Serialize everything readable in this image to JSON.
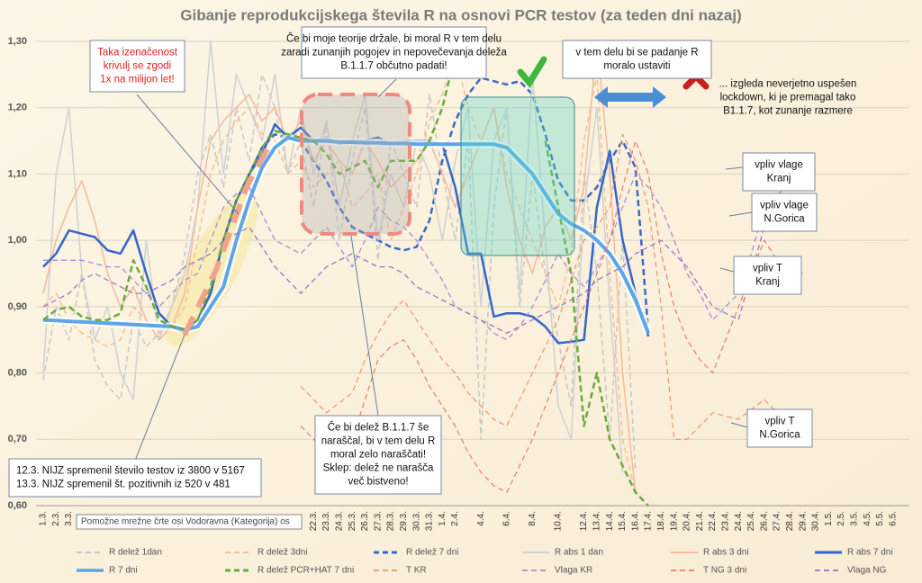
{
  "chart_data": {
    "type": "line",
    "title": "Gibanje reprodukcijskega števila R na osnovi PCR testov (za teden dni nazaj)",
    "categories": [
      "1.3.",
      "2.3.",
      "3.3.",
      null,
      null,
      null,
      null,
      null,
      null,
      null,
      null,
      null,
      null,
      null,
      null,
      null,
      null,
      null,
      null,
      null,
      null,
      "22.3.",
      "23.3.",
      "24.3.",
      "25.3.",
      "26.3.",
      "27.3.",
      "28.3.",
      "29.3.",
      "30.3.",
      "31.3.",
      "1.4.",
      "2.4.",
      null,
      "4.4.",
      null,
      "6.4.",
      null,
      "8.4.",
      null,
      "10.4.",
      null,
      "12.4.",
      "13.4.",
      "14.4.",
      "15.4.",
      "16.4.",
      "17.4.",
      "18.4.",
      "19.4.",
      "20.4.",
      "21.4.",
      "22.4.",
      "23.4.",
      "24.4.",
      "25.4.",
      "26.4.",
      "27.4.",
      "28.4.",
      "29.4.",
      "30.4.",
      "1.5.",
      "2.5.",
      "3.5.",
      "4.5.",
      "5.5.",
      "6.5."
    ],
    "ylim": [
      0.6,
      1.3
    ],
    "yticks": [
      {
        "value": 0.6,
        "label": "0,60"
      },
      {
        "value": 0.7,
        "label": "0,70"
      },
      {
        "value": 0.8,
        "label": "0,80"
      },
      {
        "value": 0.9,
        "label": "0,90"
      },
      {
        "value": 1.0,
        "label": "1,00"
      },
      {
        "value": 1.1,
        "label": "1,10"
      },
      {
        "value": 1.2,
        "label": "1,20"
      },
      {
        "value": 1.3,
        "label": "1,30"
      }
    ],
    "grid": true,
    "legend": "bottom",
    "series": [
      {
        "name": "R delež 1dan",
        "color": "#c6c6c6",
        "dashed": true,
        "values": [
          0.79,
          0.9,
          0.85,
          0.95,
          0.82,
          0.78,
          0.76,
          0.88,
          0.84,
          0.86,
          0.9,
          0.98,
          1.1,
          1.16,
          1.08,
          1.2,
          1.12,
          1.25,
          1.2,
          1.1,
          1.15,
          1.05,
          1.18,
          1.0,
          1.12,
          1.2,
          0.97,
          1.15,
          1.1,
          1.05,
          1.22,
          1.1,
          1.0,
          1.15,
          0.7,
          1.05,
          1.2,
          0.9,
          1.1,
          0.95,
          0.85,
          0.75,
          1.1,
          0.95,
          0.7,
          1.0,
          0.65,
          null,
          null,
          null,
          null,
          null,
          null,
          null,
          null,
          null,
          null,
          null,
          null,
          null,
          null,
          null,
          null,
          null,
          null,
          null,
          null
        ]
      },
      {
        "name": "R delež 3dni",
        "color": "#f5bf94",
        "dashed": true,
        "values": [
          0.9,
          0.92,
          0.88,
          0.86,
          0.85,
          0.84,
          0.85,
          0.9,
          0.88,
          0.86,
          0.87,
          0.9,
          1.0,
          1.1,
          1.15,
          1.18,
          1.2,
          1.16,
          1.15,
          1.1,
          1.12,
          1.08,
          1.1,
          1.12,
          1.05,
          1.07,
          1.1,
          1.0,
          1.05,
          1.1,
          1.18,
          1.22,
          1.28,
          1.2,
          1.15,
          1.2,
          1.1,
          1.05,
          1.0,
          0.95,
          0.9,
          0.98,
          1.15,
          1.25,
          0.95,
          0.7,
          0.62,
          null,
          null,
          null,
          null,
          null,
          null,
          null,
          null,
          null,
          null,
          null,
          null,
          null,
          null,
          null,
          null,
          null,
          null,
          null,
          null
        ]
      },
      {
        "name": "R delež 7 dni",
        "color": "#3a68c8",
        "dashed": true,
        "values": [
          null,
          null,
          null,
          null,
          null,
          null,
          null,
          null,
          null,
          null,
          null,
          0.86,
          0.88,
          0.92,
          1.0,
          1.06,
          1.1,
          1.14,
          1.16,
          1.155,
          1.15,
          1.12,
          1.09,
          1.05,
          1.02,
          1.01,
          1.0,
          0.99,
          0.985,
          0.99,
          1.03,
          1.12,
          1.18,
          1.22,
          1.245,
          1.24,
          1.235,
          1.24,
          1.22,
          1.16,
          1.09,
          1.06,
          1.06,
          1.08,
          1.12,
          1.15,
          1.11,
          0.86,
          null,
          null,
          null,
          null,
          null,
          null,
          null,
          null,
          null,
          null,
          null,
          null,
          null,
          null,
          null,
          null,
          null,
          null,
          null
        ]
      },
      {
        "name": "R abs 1 dan",
        "color": "#d0d0d0",
        "dashed": false,
        "values": [
          0.8,
          1.1,
          1.2,
          0.95,
          0.85,
          0.9,
          0.8,
          0.76,
          1.0,
          0.85,
          0.9,
          0.95,
          1.05,
          1.3,
          1.1,
          1.25,
          1.2,
          1.15,
          1.25,
          1.1,
          1.2,
          1.1,
          1.18,
          1.05,
          1.15,
          1.22,
          1.0,
          1.1,
          1.05,
          1.15,
          1.1,
          1.0,
          1.12,
          1.2,
          0.9,
          1.15,
          1.2,
          0.92,
          1.25,
          1.0,
          0.75,
          0.7,
          1.05,
          1.2,
          0.9,
          0.65,
          null,
          null,
          null,
          null,
          null,
          null,
          null,
          null,
          null,
          null,
          null,
          null,
          null,
          null,
          null,
          null,
          null,
          null,
          null,
          null,
          null
        ]
      },
      {
        "name": "R abs 3 dni",
        "color": "#f6b99c",
        "dashed": false,
        "values": [
          0.92,
          1.0,
          1.05,
          1.09,
          1.03,
          0.95,
          0.9,
          0.93,
          0.88,
          0.85,
          0.87,
          0.92,
          1.05,
          1.15,
          1.18,
          1.2,
          1.22,
          1.18,
          1.2,
          1.15,
          1.18,
          1.12,
          1.15,
          1.12,
          1.1,
          1.15,
          1.12,
          1.08,
          1.1,
          1.12,
          1.15,
          1.1,
          1.05,
          1.1,
          1.15,
          1.2,
          1.08,
          1.0,
          0.95,
          1.02,
          1.05,
          1.0,
          1.08,
          1.3,
          1.1,
          0.8,
          0.62,
          null,
          null,
          null,
          null,
          null,
          null,
          null,
          null,
          null,
          null,
          null,
          null,
          null,
          null,
          null,
          null,
          null,
          null,
          null,
          null
        ]
      },
      {
        "name": "R abs 7 dni",
        "color": "#3366cc",
        "dashed": false,
        "values": [
          0.96,
          0.98,
          1.015,
          1.01,
          1.005,
          0.985,
          0.98,
          1.015,
          0.95,
          0.89,
          0.87,
          0.86,
          0.88,
          0.92,
          1.0,
          1.06,
          1.1,
          1.13,
          1.175,
          1.155,
          1.17,
          1.15,
          1.155,
          1.145,
          1.15,
          1.15,
          1.155,
          1.145,
          1.15,
          1.15,
          1.15,
          1.145,
          1.08,
          0.98,
          0.98,
          0.885,
          0.89,
          0.89,
          0.885,
          0.87,
          0.845,
          0.847,
          0.85,
          1.05,
          1.135,
          1.0,
          0.92,
          0.855,
          null,
          null,
          null,
          null,
          null,
          null,
          null,
          null,
          null,
          null,
          null,
          null,
          null,
          null,
          null,
          null,
          null,
          null,
          null
        ]
      },
      {
        "name": "R 7 dni",
        "color": "#5ba6e8",
        "dashed": false,
        "values": [
          0.88,
          0.879,
          0.878,
          0.877,
          0.876,
          0.875,
          0.874,
          0.873,
          0.872,
          0.871,
          0.87,
          0.865,
          0.87,
          0.9,
          0.93,
          1.0,
          1.06,
          1.11,
          1.14,
          1.155,
          1.15,
          1.15,
          1.15,
          1.148,
          1.148,
          1.147,
          1.147,
          1.146,
          1.146,
          1.145,
          1.145,
          1.145,
          1.145,
          1.145,
          1.145,
          1.145,
          1.14,
          1.12,
          1.1,
          1.07,
          1.04,
          1.025,
          1.015,
          1.0,
          0.98,
          0.95,
          0.91,
          0.86,
          null,
          null,
          null,
          null,
          null,
          null,
          null,
          null,
          null,
          null,
          null,
          null,
          null,
          null,
          null,
          null,
          null,
          null,
          null
        ]
      },
      {
        "name": "R delež PCR+HAT 7 dni",
        "color": "#6aab3a",
        "dashed": true,
        "values": [
          0.88,
          0.895,
          0.9,
          0.885,
          0.88,
          0.88,
          0.89,
          0.97,
          0.93,
          0.88,
          0.87,
          0.865,
          0.88,
          0.93,
          1.0,
          1.06,
          1.1,
          1.14,
          1.165,
          1.16,
          1.155,
          1.15,
          1.13,
          1.1,
          1.11,
          1.12,
          1.08,
          1.12,
          1.12,
          1.12,
          1.15,
          1.2,
          1.28,
          null,
          null,
          null,
          null,
          null,
          null,
          1.15,
          1.05,
          0.95,
          0.72,
          0.8,
          0.7,
          0.66,
          0.62,
          0.6,
          null,
          null,
          null,
          null,
          null,
          null,
          null,
          null,
          null,
          null,
          null,
          null,
          null,
          null,
          null,
          null,
          null,
          null,
          null
        ]
      },
      {
        "name": "T KR",
        "color": "#f2926a",
        "dashed": true,
        "values": [
          null,
          null,
          null,
          null,
          null,
          null,
          null,
          null,
          null,
          null,
          null,
          null,
          null,
          null,
          null,
          null,
          null,
          null,
          null,
          null,
          0.78,
          0.76,
          0.74,
          0.755,
          0.77,
          0.82,
          0.86,
          0.89,
          0.91,
          0.88,
          0.85,
          0.82,
          0.8,
          0.77,
          0.75,
          0.73,
          0.72,
          0.76,
          0.8,
          0.84,
          0.88,
          0.94,
          1.0,
          1.02,
          1.05,
          1.16,
          1.12,
          1.05,
          0.9,
          0.7,
          0.7,
          0.72,
          0.74,
          0.735,
          0.73,
          0.745,
          0.76,
          0.74,
          0.72,
          0.71,
          null,
          null,
          null,
          null,
          null,
          null,
          null
        ]
      },
      {
        "name": "Vlaga KR",
        "color": "#a48ed2",
        "dashed": true,
        "values": [
          0.97,
          0.97,
          0.97,
          0.97,
          0.965,
          0.96,
          0.96,
          0.94,
          0.92,
          0.9,
          0.92,
          0.94,
          0.95,
          1.0,
          1.05,
          1.07,
          1.08,
          1.04,
          1.0,
          0.99,
          0.98,
          1.0,
          1.02,
          0.99,
          0.96,
          1.0,
          1.05,
          1.03,
          1.02,
          1.0,
          0.97,
          0.94,
          0.9,
          0.89,
          0.88,
          0.86,
          0.85,
          0.87,
          0.9,
          0.94,
          0.98,
          0.95,
          0.93,
          0.96,
          1.0,
          1.05,
          1.1,
          1.08,
          1.05,
          1.0,
          0.95,
          0.92,
          0.88,
          0.9,
          0.92,
          0.98,
          1.05,
          1.07,
          1.08,
          1.1,
          null,
          null,
          null,
          null,
          null,
          null,
          null
        ]
      },
      {
        "name": "T NG 3 dni",
        "color": "#ee7a66",
        "dashed": true,
        "values": [
          null,
          null,
          null,
          null,
          null,
          null,
          null,
          null,
          null,
          null,
          null,
          null,
          null,
          null,
          null,
          null,
          null,
          null,
          null,
          null,
          0.72,
          0.7,
          0.68,
          0.69,
          0.7,
          0.76,
          0.82,
          0.84,
          0.85,
          0.82,
          0.78,
          0.75,
          0.72,
          0.68,
          0.65,
          0.63,
          0.62,
          0.66,
          0.7,
          0.75,
          0.8,
          0.85,
          0.9,
          0.95,
          1.0,
          1.08,
          1.15,
          1.1,
          0.98,
          0.9,
          0.85,
          0.82,
          0.8,
          0.85,
          0.9,
          0.95,
          1.0,
          0.97,
          0.95,
          0.95,
          null,
          null,
          null,
          null,
          null,
          null,
          null
        ]
      },
      {
        "name": "Vlaga NG",
        "color": "#9676c6",
        "dashed": true,
        "values": [
          0.9,
          0.91,
          0.92,
          0.94,
          0.95,
          0.94,
          0.93,
          0.92,
          0.92,
          0.93,
          0.94,
          0.96,
          0.97,
          0.98,
          1.0,
          1.01,
          1.02,
          0.99,
          0.96,
          0.94,
          0.92,
          0.94,
          0.96,
          0.97,
          0.98,
          0.97,
          0.96,
          0.96,
          0.95,
          0.93,
          0.92,
          0.91,
          0.9,
          0.89,
          0.88,
          0.87,
          0.86,
          0.87,
          0.88,
          0.89,
          0.9,
          0.91,
          0.92,
          0.94,
          0.95,
          0.96,
          0.98,
          0.99,
          1.0,
          0.98,
          0.96,
          0.93,
          0.9,
          0.89,
          0.88,
          0.95,
          1.02,
          1.025,
          1.03,
          1.04,
          null,
          null,
          null,
          null,
          null,
          null,
          null
        ]
      }
    ],
    "annotations": [
      {
        "lines": [
          "Taka izenačenost",
          "krivulj se zgodi",
          "1x na milijon let!"
        ],
        "color": "#e02020"
      },
      {
        "lines": [
          "Če bi moje teorije držale, bi moral R v tem delu",
          "zaradi zunanjih pogojev in nepovečevanja deleža",
          "B.1.1.7 občutno padati!"
        ],
        "color": "#111111"
      },
      {
        "lines": [
          "v tem delu bi se padanje R",
          "moralo ustaviti"
        ],
        "color": "#111111"
      },
      {
        "lines": [
          "... izgleda neverjetno uspešen",
          "lockdown, ki je premagal tako",
          "B1.1.7, kot zunanje razmere"
        ],
        "color": "#111111"
      },
      {
        "lines": [
          "vpliv vlage",
          "Kranj"
        ],
        "color": "#111111"
      },
      {
        "lines": [
          "vpliv vlage",
          "N.Gorica"
        ],
        "color": "#111111"
      },
      {
        "lines": [
          "vpliv T",
          "Kranj"
        ],
        "color": "#111111"
      },
      {
        "lines": [
          "vpliv T",
          "N.Gorica"
        ],
        "color": "#111111"
      },
      {
        "lines": [
          "Če bi delež B.1.1.7 še",
          "naraščal, bi v tem delu R",
          "moral zelo naraščati!",
          "Sklep: delež ne narašča",
          "več bistveno!"
        ],
        "color": "#111111"
      },
      {
        "lines": [
          "12.3. NIJZ spremenil število testov iz 3800 v 5167",
          "13.3. NIJZ spremenil št. pozitivnih iz 520 v 481"
        ],
        "color": "#111111"
      }
    ],
    "tooltip": "Pomožne mrežne črte osi Vodoravna (Kategorija)  os"
  }
}
